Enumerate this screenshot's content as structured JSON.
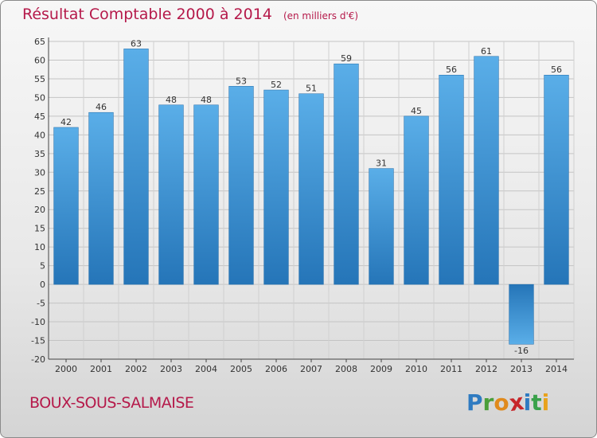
{
  "header": {
    "title": "Résultat Comptable 2000 à 2014",
    "subtitle": "(en milliers d'€)"
  },
  "footer": {
    "place": "BOUX-SOUS-SALMAISE",
    "logo_letters": [
      "P",
      "r",
      "o",
      "x",
      "i",
      "t",
      "i"
    ]
  },
  "colors": {
    "title": "#b5194a",
    "bar_dark": "#2575b8",
    "bar_light": "#5aaee8",
    "logo": [
      "#2f7bc1",
      "#4a9e3a",
      "#e08a1c",
      "#c7262a",
      "#2f7bc1",
      "#3aa14a",
      "#e8a21c"
    ]
  },
  "chart_data": {
    "type": "bar",
    "title": "Résultat Comptable 2000 à 2014",
    "subtitle": "(en milliers d'€)",
    "categories": [
      "2000",
      "2001",
      "2002",
      "2003",
      "2004",
      "2005",
      "2006",
      "2007",
      "2008",
      "2009",
      "2010",
      "2011",
      "2012",
      "2013",
      "2014"
    ],
    "values": [
      42,
      46,
      63,
      48,
      48,
      53,
      52,
      51,
      59,
      31,
      45,
      56,
      61,
      -16,
      56
    ],
    "ylim": [
      -20,
      65
    ],
    "yticks": [
      65,
      60,
      55,
      50,
      45,
      40,
      35,
      30,
      25,
      20,
      15,
      10,
      5,
      0,
      -5,
      -10,
      -15,
      -20
    ],
    "grid": true
  }
}
